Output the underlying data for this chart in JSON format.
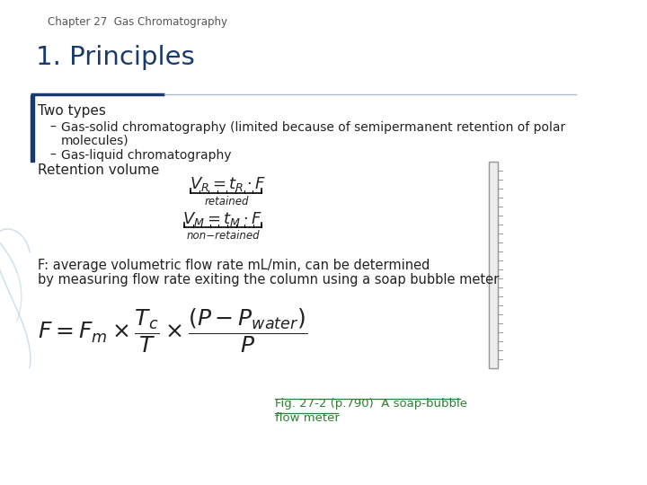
{
  "title": "1. Principles",
  "chapter_header": "Chapter 27  Gas Chromatography",
  "background_color": "#ffffff",
  "accent_color": "#1a3a6b",
  "text_color": "#222222",
  "link_color": "#2e7d32",
  "header_line_color_dark": "#1a3a6b",
  "header_line_color_light": "#aabbcc",
  "left_bar_color": "#1a3a6b",
  "two_types_label": "Two types",
  "bullet1_line1": "Gas-solid chromatography (limited because of semipermanent retention of polar",
  "bullet1_line2": "molecules)",
  "bullet2": "Gas-liquid chromatography",
  "retention_label": "Retention volume",
  "flow_text1": "F: average volumetric flow rate mL/min, can be determined",
  "flow_text2": "by measuring flow rate exiting the column using a soap bubble meter",
  "fig_caption_line1": "Fig. 27-2 (p.790)  A soap-bubble",
  "fig_caption_line2": "flow meter"
}
